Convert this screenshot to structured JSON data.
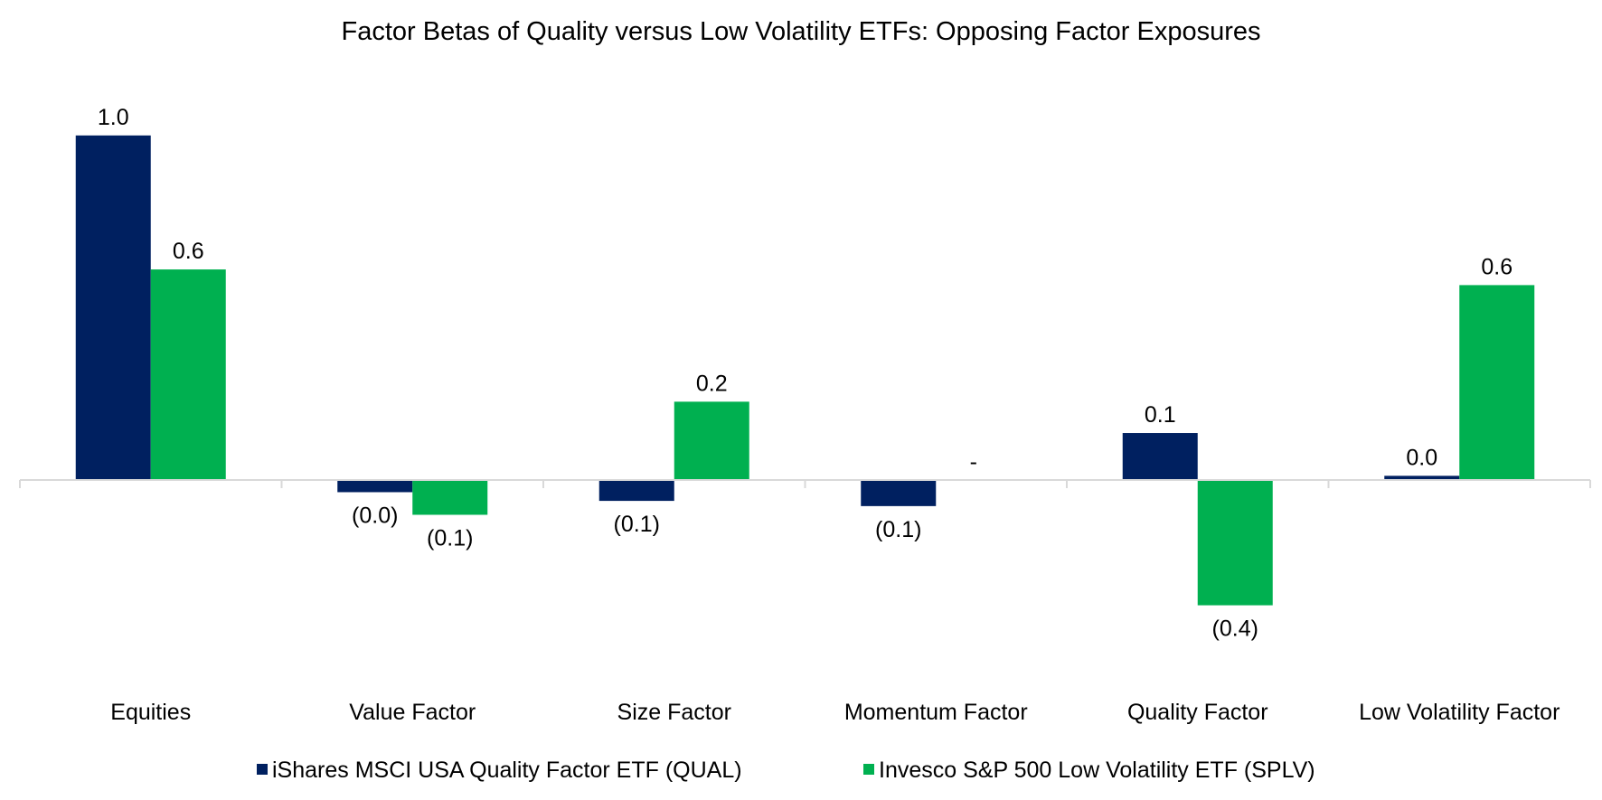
{
  "chart_data": {
    "type": "bar",
    "title": "Factor Betas of Quality versus Low Volatility ETFs: Opposing Factor Exposures",
    "xlabel": "",
    "ylabel": "",
    "categories": [
      "Equities",
      "Value Factor",
      "Size Factor",
      "Momentum Factor",
      "Quality Factor",
      "Low Volatility Factor"
    ],
    "series": [
      {
        "name": "iShares MSCI USA Quality Factor ETF (QUAL)",
        "color": "#002060",
        "values": [
          0.99,
          -0.035,
          -0.06,
          -0.075,
          0.135,
          0.012
        ],
        "labels": [
          "1.0",
          "(0.0)",
          "(0.1)",
          "(0.1)",
          "0.1",
          "0.0"
        ]
      },
      {
        "name": "Invesco S&P 500 Low Volatility ETF (SPLV)",
        "color": "#00B050",
        "values": [
          0.605,
          -0.1,
          0.225,
          0,
          -0.36,
          0.56
        ],
        "labels": [
          "0.6",
          "(0.1)",
          "0.2",
          "-",
          "(0.4)",
          "0.6"
        ]
      }
    ],
    "ylim": [
      -0.55,
      1.12
    ],
    "grid": false,
    "legend_position": "bottom"
  }
}
